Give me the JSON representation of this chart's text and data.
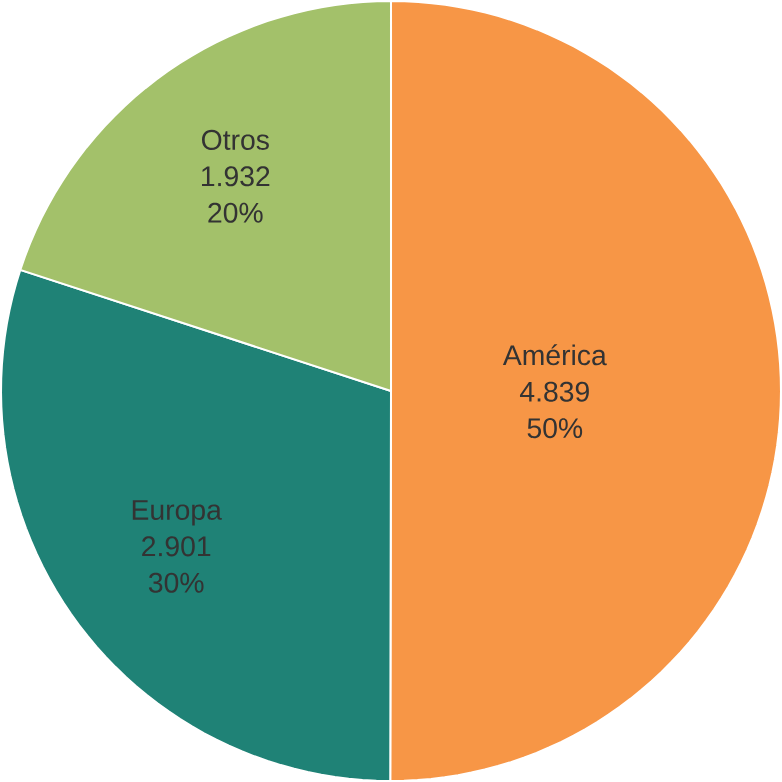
{
  "chart_data": {
    "type": "pie",
    "categories": [
      "América",
      "Europa",
      "Otros"
    ],
    "values": [
      4839,
      2901,
      1932
    ],
    "value_labels": [
      "4.839",
      "2.901",
      "1.932"
    ],
    "annotations": [
      "50%",
      "30%",
      "20%"
    ],
    "colors": [
      "#f79646",
      "#1f8276",
      "#a3c16a"
    ]
  }
}
